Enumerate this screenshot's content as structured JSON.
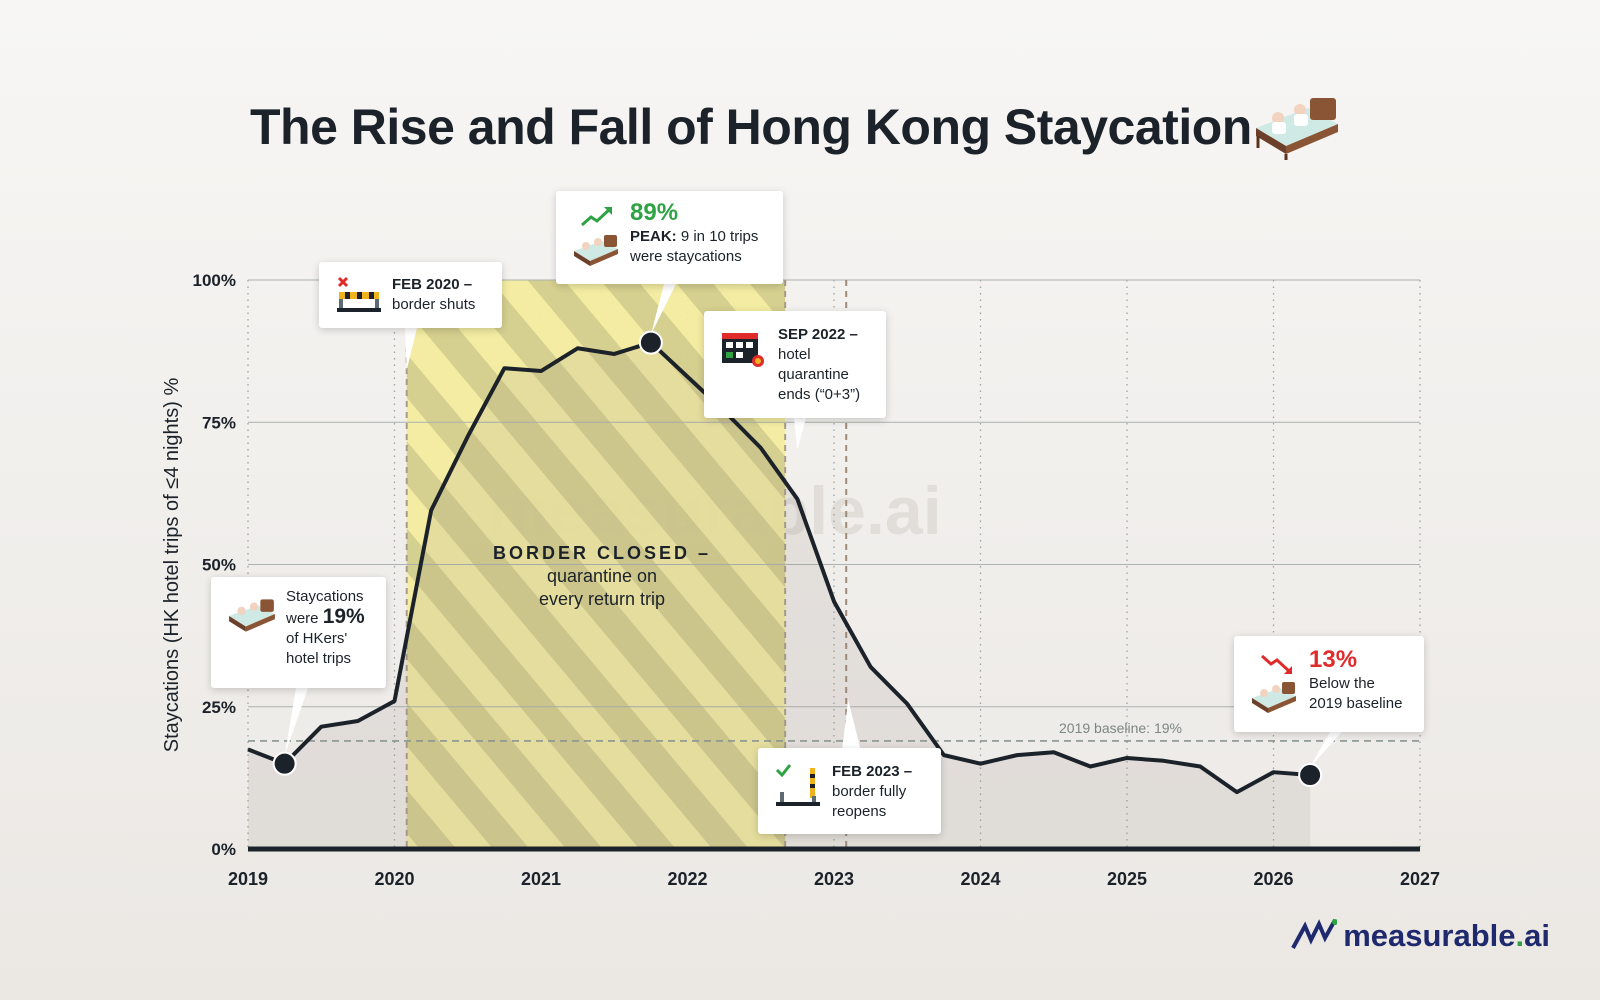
{
  "title": "The Rise and Fall of Hong Kong Staycation",
  "watermark": "measurable.ai",
  "logo": {
    "text_main": "measurable",
    "text_dot": ".",
    "text_ai": "ai"
  },
  "colors": {
    "line": "#1c2229",
    "shade": "#f3ec9e",
    "stripe": "#d3ce8a",
    "peak_green": "#2ea343",
    "drop_red": "#e02b2b",
    "baseline": "#8b9591",
    "logo_navy": "#1f2a6e"
  },
  "chart_data": {
    "type": "line",
    "title": "The Rise and Fall of Hong Kong Staycation",
    "xlabel": "",
    "ylabel": "Staycations (HK hotel trips of ≤4 nights) %",
    "xlim": [
      2019,
      2027
    ],
    "ylim": [
      0,
      100
    ],
    "x_ticks": [
      "2019",
      "2020",
      "2021",
      "2022",
      "2023",
      "2024",
      "2025",
      "2026",
      "2027"
    ],
    "y_ticks": [
      "0%",
      "25%",
      "50%",
      "75%",
      "100%"
    ],
    "grid": true,
    "series": [
      {
        "name": "",
        "x": [
          "2019-01",
          "2019-04",
          "2019-07",
          "2019-10",
          "2020-01",
          "2020-04",
          "2020-07",
          "2020-10",
          "2021-01",
          "2021-04",
          "2021-07",
          "2021-10",
          "2022-01",
          "2022-04",
          "2022-07",
          "2022-10",
          "2023-01",
          "2023-04",
          "2023-07",
          "2023-10",
          "2024-01",
          "2024-04",
          "2024-07",
          "2024-10",
          "2025-01",
          "2025-04",
          "2025-07",
          "2025-10",
          "2026-01",
          "2026-04"
        ],
        "values": [
          17.5,
          15,
          21.5,
          22.5,
          26,
          59.5,
          72.5,
          84.5,
          84,
          88,
          87,
          89,
          83,
          77,
          70.5,
          61.5,
          43.5,
          32,
          25.5,
          16.5,
          15,
          16.5,
          17,
          14.5,
          16,
          15.5,
          14.5,
          10,
          13.5,
          13
        ]
      }
    ],
    "baseline": {
      "label": "2019 baseline: 19%",
      "value": 19
    },
    "shaded_periods": [
      {
        "label": "BORDER CLOSED –",
        "sublabel_1": "quarantine on",
        "sublabel_2": "every return trip",
        "start": "2020-02",
        "end": "2022-09"
      }
    ],
    "events": [
      {
        "date": "2020-02",
        "label": "FEB 2020 –",
        "desc": "border shuts"
      },
      {
        "date": "2022-09",
        "label": "SEP 2022 –",
        "desc_1": "hotel",
        "desc_2": "quarantine",
        "desc_3": "ends (“0+3”)"
      },
      {
        "date": "2023-02",
        "label": "FEB 2023 –",
        "desc_1": "border fully",
        "desc_2": "reopens"
      }
    ],
    "annotations": {
      "start": {
        "line1": "Staycations",
        "line2a": "were ",
        "value": "19%",
        "line3": "of HKers'",
        "line4": "hotel trips"
      },
      "peak": {
        "value": "89%",
        "bold": "PEAK:",
        "rest": " 9 in 10 trips",
        "line2": "were staycations"
      },
      "end": {
        "value": "13%",
        "line1": "Below the",
        "line2": "2019 baseline"
      }
    }
  }
}
